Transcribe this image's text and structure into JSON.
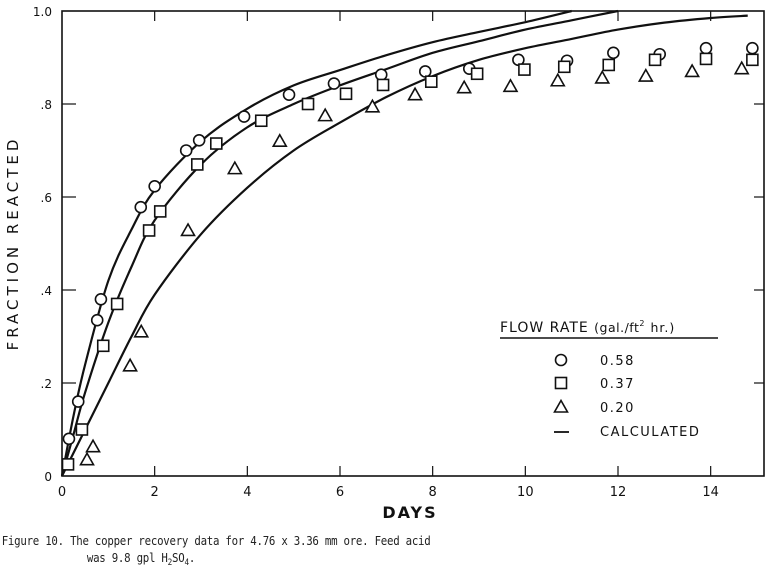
{
  "chart_data": {
    "type": "scatter",
    "title": "",
    "xlabel": "DAYS",
    "ylabel": "FRACTION REACTED",
    "xlim": [
      0,
      15
    ],
    "ylim": [
      0,
      1.0
    ],
    "xticks": [
      0,
      2,
      4,
      6,
      8,
      10,
      12,
      14
    ],
    "xtick_labels": [
      "0",
      "2",
      "4",
      "6",
      "8",
      "10",
      "12",
      "14"
    ],
    "yticks": [
      0,
      0.2,
      0.4,
      0.6,
      0.8,
      1.0
    ],
    "ytick_labels": [
      "0",
      ".2",
      ".4",
      ".6",
      ".8",
      "1.0"
    ],
    "grid": false,
    "legend": {
      "title": "FLOW RATE (gal./ft² hr.)",
      "title_main": "FLOW RATE",
      "title_unit_pre": "(gal./ft",
      "title_unit_sup": "2",
      "title_unit_post": " hr.)",
      "position": "lower right",
      "entries": [
        {
          "marker": "circle",
          "label": "0.58"
        },
        {
          "marker": "square",
          "label": "0.37"
        },
        {
          "marker": "triangle",
          "label": "0.20"
        },
        {
          "marker": "line",
          "label": "CALCULATED"
        }
      ]
    },
    "series": [
      {
        "name": "0.58",
        "marker": "circle",
        "x": [
          0.15,
          0.35,
          0.76,
          0.84,
          1.7,
          2.0,
          2.68,
          2.96,
          3.93,
          4.9,
          5.87,
          6.89,
          7.84,
          8.79,
          9.85,
          10.9,
          11.9,
          12.9,
          13.9,
          14.9
        ],
        "y": [
          0.08,
          0.16,
          0.335,
          0.38,
          0.578,
          0.623,
          0.7,
          0.722,
          0.773,
          0.82,
          0.844,
          0.863,
          0.87,
          0.876,
          0.895,
          0.893,
          0.91,
          0.907,
          0.92,
          0.92
        ]
      },
      {
        "name": "0.37",
        "marker": "square",
        "x": [
          0.13,
          0.43,
          0.89,
          1.19,
          1.88,
          2.12,
          2.92,
          3.33,
          4.3,
          5.31,
          6.13,
          6.93,
          7.97,
          8.96,
          9.98,
          10.84,
          11.8,
          12.8,
          13.9,
          14.9
        ],
        "y": [
          0.025,
          0.1,
          0.28,
          0.37,
          0.528,
          0.569,
          0.67,
          0.715,
          0.764,
          0.8,
          0.822,
          0.841,
          0.848,
          0.865,
          0.874,
          0.88,
          0.884,
          0.895,
          0.897,
          0.895
        ]
      },
      {
        "name": "0.20",
        "marker": "triangle",
        "x": [
          0.54,
          0.67,
          1.47,
          1.71,
          2.72,
          3.73,
          4.7,
          5.68,
          6.7,
          7.62,
          8.68,
          9.68,
          10.7,
          11.66,
          12.6,
          13.6,
          14.67
        ],
        "y": [
          0.035,
          0.063,
          0.237,
          0.31,
          0.528,
          0.661,
          0.72,
          0.775,
          0.794,
          0.82,
          0.835,
          0.838,
          0.85,
          0.856,
          0.86,
          0.87,
          0.876
        ]
      }
    ],
    "calculated_curves": [
      {
        "name": "calculated-0.58",
        "x": [
          0,
          0.25,
          0.5,
          1.0,
          1.5,
          2.0,
          3.0,
          4.0,
          5.0,
          6.0,
          7.0,
          8.0,
          9.0,
          10.0,
          11.0
        ],
        "y": [
          0,
          0.13,
          0.24,
          0.42,
          0.53,
          0.615,
          0.72,
          0.79,
          0.84,
          0.873,
          0.905,
          0.933,
          0.955,
          0.976,
          1.0
        ]
      },
      {
        "name": "calculated-0.37",
        "x": [
          0,
          0.25,
          0.5,
          1.0,
          1.5,
          2.0,
          3.0,
          4.0,
          5.0,
          6.0,
          7.0,
          8.0,
          9.0,
          10.0,
          11.0,
          12.0
        ],
        "y": [
          0,
          0.09,
          0.18,
          0.33,
          0.45,
          0.55,
          0.67,
          0.75,
          0.8,
          0.84,
          0.875,
          0.91,
          0.935,
          0.96,
          0.98,
          1.0
        ]
      },
      {
        "name": "calculated-0.20",
        "x": [
          0,
          0.5,
          1.0,
          1.5,
          2.0,
          3.0,
          4.0,
          5.0,
          6.0,
          7.0,
          8.0,
          9.0,
          10.0,
          11.0,
          12.0,
          13.0,
          14.0,
          14.8
        ],
        "y": [
          0,
          0.1,
          0.2,
          0.3,
          0.39,
          0.52,
          0.62,
          0.7,
          0.76,
          0.815,
          0.86,
          0.895,
          0.92,
          0.94,
          0.96,
          0.975,
          0.985,
          0.99
        ]
      }
    ]
  },
  "caption": {
    "line1": "Figure 10. The copper recovery data for 4.76 x 3.36 mm ore.  Feed acid",
    "line2_pre": "was 9.8 gpl H",
    "line2_sub1": "2",
    "line2_mid": "SO",
    "line2_sub2": "4",
    "line2_post": "."
  },
  "colors": {
    "ink": "#111111",
    "background": "#ffffff"
  }
}
